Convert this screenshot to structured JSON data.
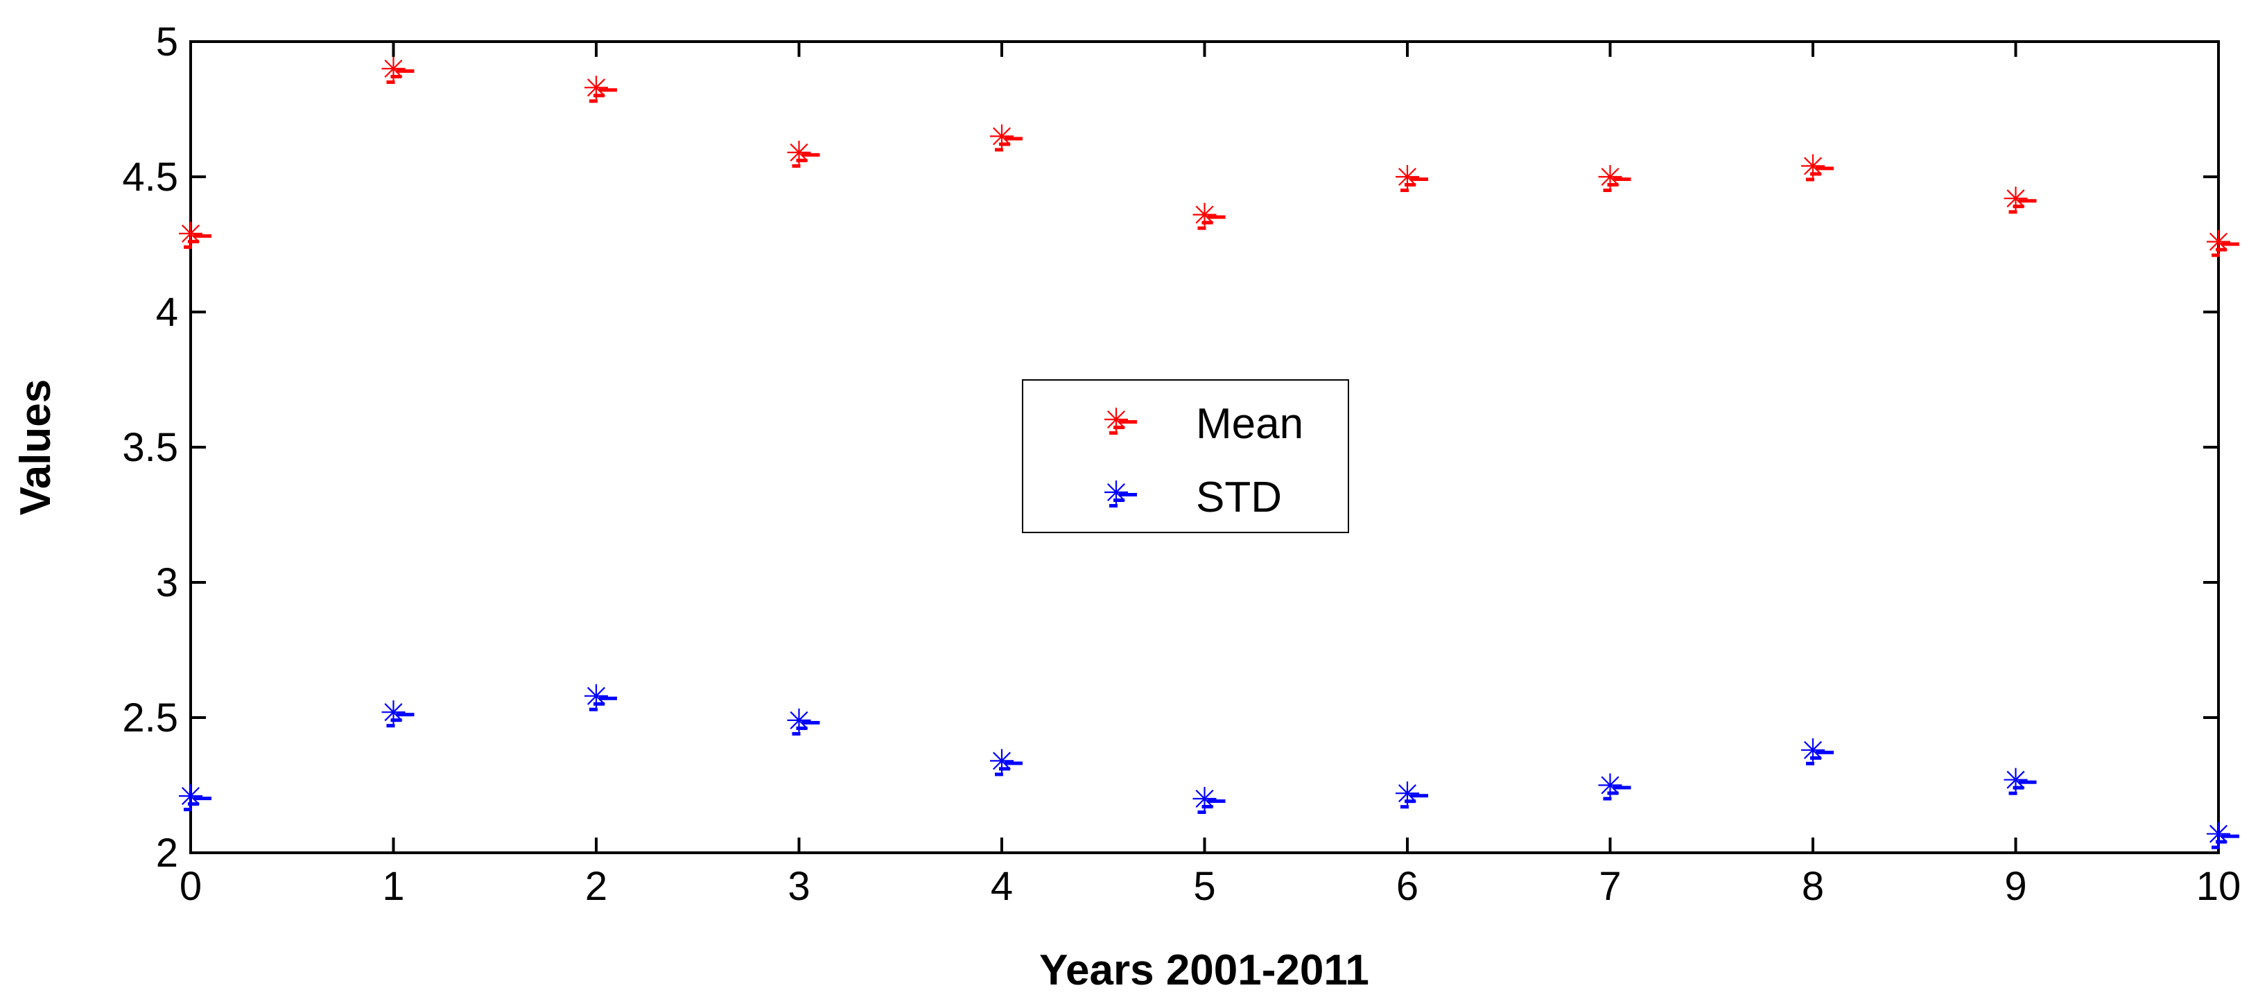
{
  "chart_data": {
    "type": "scatter",
    "xlabel": "Years 2001-2011",
    "ylabel": "Values",
    "xlim": [
      0,
      10
    ],
    "ylim": [
      2,
      5
    ],
    "xticks": [
      "0",
      "1",
      "2",
      "3",
      "4",
      "5",
      "6",
      "7",
      "8",
      "9",
      "10"
    ],
    "yticks": [
      "2",
      "2.5",
      "3",
      "3.5",
      "4",
      "4.5",
      "5"
    ],
    "x": [
      0,
      1,
      2,
      3,
      4,
      5,
      6,
      7,
      8,
      9,
      10
    ],
    "grid": false,
    "legend_position": "center",
    "series": [
      {
        "name": "Mean",
        "color": "#ff0000",
        "marker": "asterisk",
        "values": [
          4.29,
          4.9,
          4.83,
          4.59,
          4.65,
          4.36,
          4.5,
          4.5,
          4.54,
          4.42,
          4.26
        ]
      },
      {
        "name": "STD",
        "color": "#0000ff",
        "marker": "asterisk",
        "values": [
          2.21,
          2.52,
          2.58,
          2.49,
          2.34,
          2.2,
          2.22,
          2.25,
          2.38,
          2.27,
          2.07
        ]
      }
    ]
  }
}
